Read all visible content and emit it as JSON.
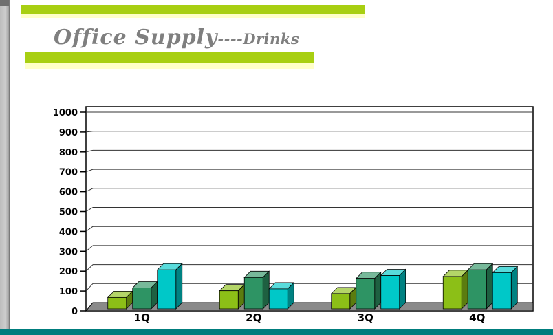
{
  "slide": {
    "title_main": "Office Supply",
    "title_suffix": "----Drinks",
    "title_color": "#7f7f7f",
    "accent_green": "#a8cf12",
    "accent_pale_yellow": "#ffffc8",
    "footer_teal": "#007d7d"
  },
  "chart_data": {
    "type": "bar",
    "variant": "3d-column",
    "categories": [
      "1Q",
      "2Q",
      "3Q",
      "4Q"
    ],
    "series": [
      {
        "name": "yellow-green",
        "color": "#8cbf17",
        "values": [
          60,
          95,
          80,
          170
        ]
      },
      {
        "name": "teal-green",
        "color": "#2e9464",
        "values": [
          110,
          165,
          160,
          205
        ]
      },
      {
        "name": "cyan",
        "color": "#00c8c8",
        "values": [
          205,
          105,
          175,
          190
        ]
      }
    ],
    "ylim": [
      0,
      1000
    ],
    "yticks": [
      0,
      100,
      200,
      300,
      400,
      500,
      600,
      700,
      800,
      900,
      1000
    ],
    "grid": true,
    "legend": "none",
    "floor_color": "#8a8a8a",
    "wall_color": "#ffffff",
    "axis_text_color": "#000000"
  }
}
